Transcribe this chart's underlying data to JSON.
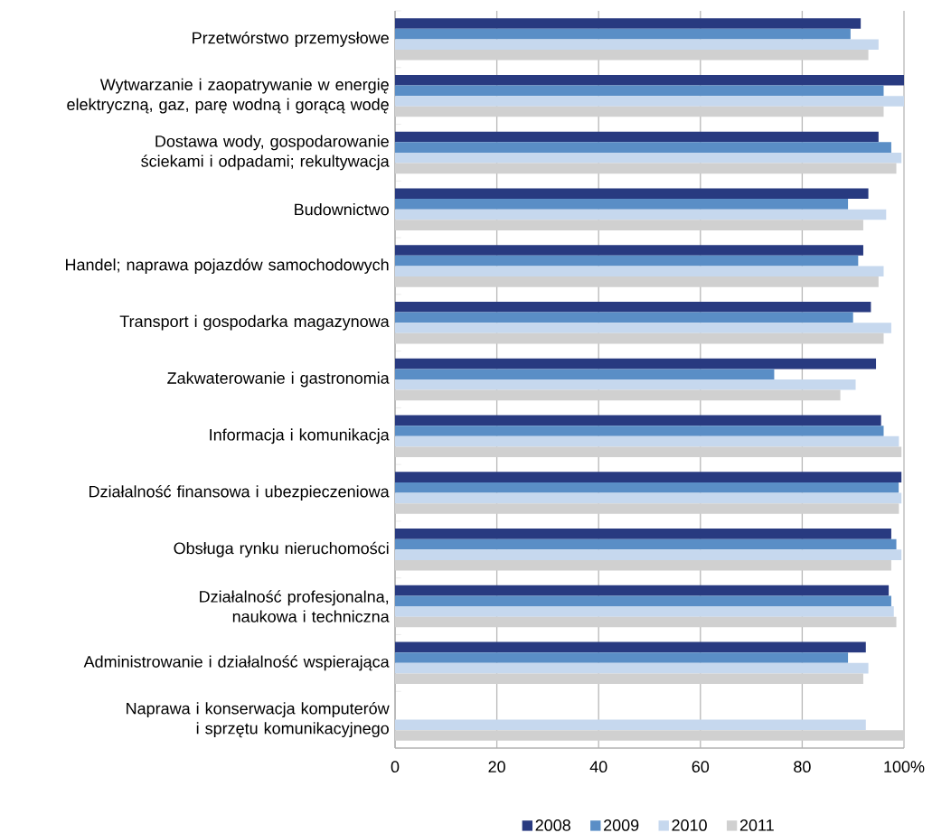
{
  "chart_data": {
    "type": "bar",
    "orientation": "horizontal",
    "categories": [
      "Przetwórstwo przemysłowe",
      "Wytwarzanie i zaopatrywanie w energię elektryczną, gaz, parę wodną i gorącą wodę",
      "Dostawa wody, gospodarowanie ściekami i odpadami; rekultywacja",
      "Budownictwo",
      "Handel; naprawa pojazdów samochodowych",
      "Transport i gospodarka magazynowa",
      "Zakwaterowanie i gastronomia",
      "Informacja i komunikacja",
      "Działalność finansowa i ubezpieczeniowa",
      "Obsługa rynku nieruchomości",
      "Działalność profesjonalna, naukowa i techniczna",
      "Administrowanie i działalność wspierająca",
      "Naprawa i konserwacja komputerów i sprzętu komunikacyjnego"
    ],
    "series": [
      {
        "name": "2008",
        "color": "#283a80",
        "values": [
          91.5,
          100,
          95,
          93,
          92,
          93.5,
          94.5,
          95.5,
          99.5,
          97.5,
          97,
          92.5,
          null
        ]
      },
      {
        "name": "2009",
        "color": "#5a8ec6",
        "values": [
          89.5,
          96,
          97.5,
          89,
          91,
          90,
          74.5,
          96,
          99,
          98.5,
          97.5,
          89,
          null
        ]
      },
      {
        "name": "2010",
        "color": "#c6d8ee",
        "values": [
          95,
          100,
          99.5,
          96.5,
          96,
          97.5,
          90.5,
          99,
          99.5,
          99.5,
          98,
          93,
          92.5
        ]
      },
      {
        "name": "2011",
        "color": "#d0d0d0",
        "values": [
          93,
          96,
          98.5,
          92,
          95,
          96,
          87.5,
          99.5,
          99,
          97.5,
          98.5,
          92,
          100
        ]
      }
    ],
    "xlim": [
      0,
      100
    ],
    "xticks": [
      0,
      20,
      40,
      60,
      80,
      {
        "value": 100,
        "label": "100%"
      }
    ],
    "grid": "x",
    "legend": "bottom"
  }
}
